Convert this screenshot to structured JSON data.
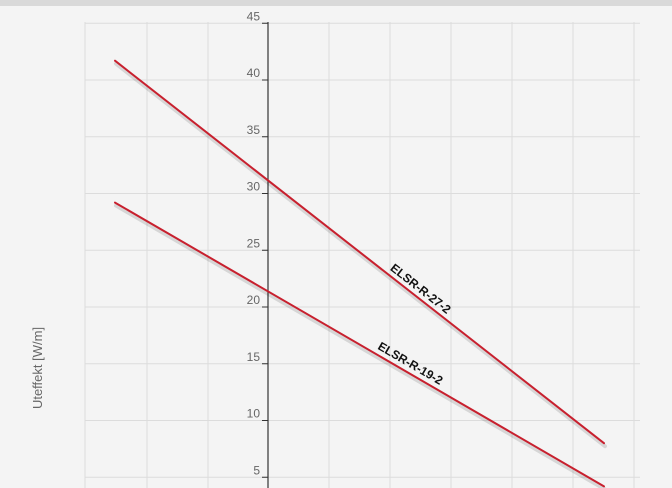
{
  "chart_data": {
    "type": "line",
    "title": "",
    "xlabel": "",
    "ylabel": "Uteffekt [W/m]",
    "ylim": [
      0,
      45
    ],
    "yticks": [
      5,
      10,
      15,
      20,
      25,
      30,
      35,
      40,
      45
    ],
    "grid": true,
    "series": [
      {
        "name": "ELSR-R-27-2",
        "x": [
          -25,
          55
        ],
        "values": [
          41.7,
          8.0
        ],
        "color": "#c8202e"
      },
      {
        "name": "ELSR-R-19-2",
        "x": [
          -25,
          55
        ],
        "values": [
          29.2,
          4.2
        ],
        "color": "#c8202e"
      }
    ],
    "colors": {
      "background": "#f4f4f4",
      "grid": "#dcdcdc",
      "axis": "#333333",
      "series": "#c8202e"
    }
  }
}
